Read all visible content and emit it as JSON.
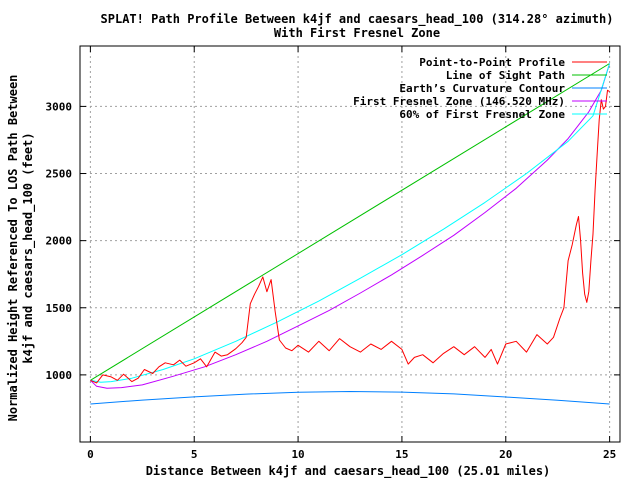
{
  "chart_data": {
    "type": "line",
    "title": "SPLAT! Path Profile Between k4jf and caesars_head_100 (314.28° azimuth)",
    "subtitle": "With First Fresnel Zone",
    "xlabel": "Distance Between k4jf and caesars_head_100 (25.01 miles)",
    "ylabel_line1": "Normalized Height Referenced To LOS Path Between",
    "ylabel_line2": "k4jf and caesars_head_100 (feet)",
    "xlim": [
      -0.5,
      25.5
    ],
    "ylim": [
      500,
      3450
    ],
    "x_ticks": [
      "0",
      "5",
      "10",
      "15",
      "20",
      "25"
    ],
    "y_ticks": [
      "1000",
      "1500",
      "2000",
      "2500",
      "3000"
    ],
    "grid": true,
    "legend_position": "top-right",
    "colors": {
      "profile": "#ff0000",
      "los": "#00c000",
      "curvature": "#0080ff",
      "fresnel": "#c000ff",
      "fresnel60": "#00ffff",
      "grid": "#a0a0a0"
    },
    "series": [
      {
        "key": "profile",
        "name": "Point-to-Point Profile",
        "x": [
          0,
          0.3,
          0.6,
          1.0,
          1.3,
          1.6,
          2.0,
          2.3,
          2.6,
          3.0,
          3.3,
          3.6,
          4.0,
          4.3,
          4.6,
          5.0,
          5.3,
          5.6,
          6.0,
          6.3,
          6.6,
          7.0,
          7.3,
          7.5,
          7.7,
          7.9,
          8.1,
          8.3,
          8.5,
          8.7,
          8.9,
          9.1,
          9.4,
          9.7,
          10.0,
          10.5,
          11.0,
          11.5,
          12.0,
          12.5,
          13.0,
          13.5,
          14.0,
          14.5,
          15.0,
          15.3,
          15.6,
          16.0,
          16.5,
          17.0,
          17.5,
          18.0,
          18.5,
          19.0,
          19.3,
          19.6,
          20.0,
          20.5,
          21.0,
          21.5,
          22.0,
          22.3,
          22.6,
          22.8,
          23.0,
          23.2,
          23.4,
          23.5,
          23.6,
          23.7,
          23.8,
          23.9,
          24.0,
          24.1,
          24.2,
          24.3,
          24.4,
          24.5,
          24.6,
          24.7,
          24.8,
          24.9,
          25.0
        ],
        "y": [
          960,
          940,
          1000,
          985,
          960,
          1005,
          950,
          975,
          1040,
          1010,
          1060,
          1090,
          1075,
          1110,
          1065,
          1090,
          1120,
          1060,
          1170,
          1140,
          1150,
          1195,
          1240,
          1280,
          1530,
          1600,
          1660,
          1730,
          1620,
          1710,
          1470,
          1260,
          1200,
          1180,
          1220,
          1170,
          1250,
          1180,
          1270,
          1210,
          1170,
          1230,
          1190,
          1250,
          1190,
          1080,
          1130,
          1150,
          1090,
          1160,
          1210,
          1150,
          1210,
          1130,
          1190,
          1080,
          1230,
          1250,
          1170,
          1300,
          1230,
          1280,
          1420,
          1500,
          1850,
          1970,
          2120,
          2180,
          2010,
          1760,
          1600,
          1540,
          1620,
          1850,
          2050,
          2380,
          2650,
          2900,
          3050,
          2980,
          3000,
          3120,
          3110
        ]
      },
      {
        "key": "los",
        "name": "Line of Sight Path",
        "x": [
          0,
          25
        ],
        "y": [
          960,
          3320
        ]
      },
      {
        "key": "curvature",
        "name": "Earth’s Curvature Contour",
        "x": [
          0,
          2.5,
          5,
          7.5,
          10,
          12.5,
          15,
          17.5,
          20,
          22.5,
          25
        ],
        "y": [
          783,
          812,
          836,
          857,
          871,
          876,
          872,
          858,
          835,
          811,
          783
        ]
      },
      {
        "key": "fresnel",
        "name": "First Fresnel Zone (146.520 MHz)",
        "x": [
          0,
          0.3,
          0.8,
          1.5,
          2.5,
          4.0,
          5.5,
          7.0,
          8.5,
          10.0,
          11.5,
          13.0,
          14.5,
          16.0,
          17.5,
          19.0,
          20.5,
          22.0,
          23.0,
          24.0,
          24.6,
          25.0
        ],
        "y": [
          960,
          915,
          900,
          905,
          925,
          990,
          1060,
          1150,
          1250,
          1365,
          1480,
          1610,
          1745,
          1890,
          2040,
          2210,
          2390,
          2600,
          2760,
          2960,
          3120,
          3320
        ]
      },
      {
        "key": "fresnel60",
        "name": "60% of First Fresnel Zone",
        "x": [
          0,
          0.5,
          1.0,
          2.0,
          3.5,
          5.0,
          7.0,
          9.0,
          11.0,
          13.0,
          15.0,
          17.0,
          19.0,
          21.0,
          23.0,
          24.2,
          25.0
        ],
        "y": [
          960,
          945,
          950,
          975,
          1040,
          1120,
          1250,
          1395,
          1550,
          1720,
          1895,
          2085,
          2285,
          2500,
          2740,
          2930,
          3320
        ]
      }
    ]
  }
}
